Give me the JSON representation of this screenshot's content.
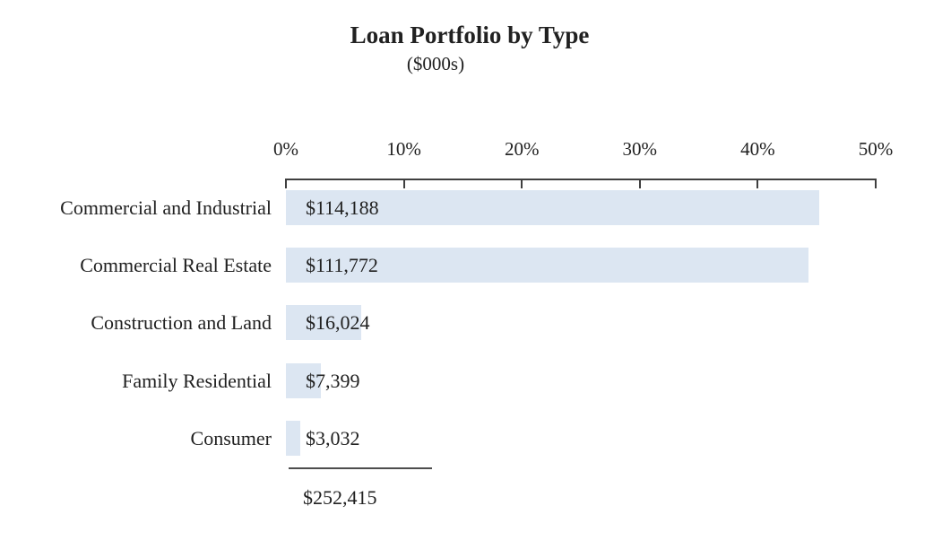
{
  "chart_data": {
    "type": "bar",
    "orientation": "horizontal",
    "title": "Loan Portfolio by Type",
    "subtitle": "($000s)",
    "categories": [
      "Commercial and Industrial",
      "Commercial Real Estate",
      "Construction and Land",
      "Family Residential",
      "Consumer"
    ],
    "values": [
      114188,
      111772,
      16024,
      7399,
      3032
    ],
    "value_labels": [
      "$114,188",
      "$111,772",
      "$16,024",
      "$7,399",
      "$3,032"
    ],
    "percent_of_total": [
      45.2,
      44.3,
      6.3,
      2.9,
      1.2
    ],
    "total": 252415,
    "total_label": "$252,415",
    "x_tick_labels": [
      "0%",
      "10%",
      "20%",
      "30%",
      "40%",
      "50%"
    ],
    "xlim": [
      0,
      0.5
    ],
    "xlabel": "",
    "ylabel": "",
    "grid": "off",
    "legend": "none",
    "axis_position": "top",
    "bar_color": "#dce6f2",
    "axis_color": "#3f3f3f",
    "text_color": "#212121",
    "background_color": "#ffffff"
  }
}
